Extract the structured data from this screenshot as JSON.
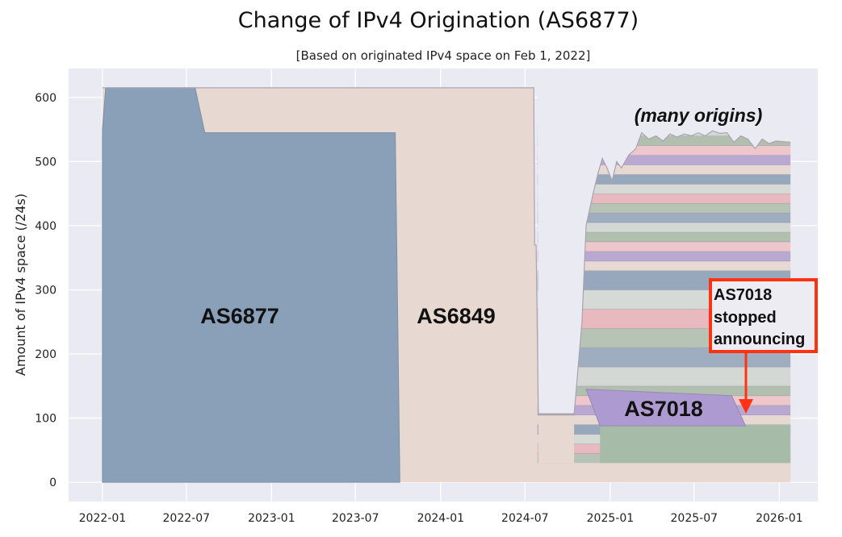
{
  "chart_data": {
    "type": "area",
    "title": "Change of IPv4 Origination (AS6877)",
    "subtitle": "[Based on originated IPv4 space on Feb 1, 2022]",
    "xlabel": "",
    "ylabel": "Amount of IPv4 space (/24s)",
    "x_ticks": [
      "2022-01",
      "2022-07",
      "2023-01",
      "2023-07",
      "2024-01",
      "2024-07",
      "2025-01",
      "2025-07",
      "2026-01"
    ],
    "y_ticks": [
      0,
      100,
      200,
      300,
      400,
      500,
      600
    ],
    "ylim": [
      -30,
      645
    ],
    "xlim": [
      "2021-10-20",
      "2026-03-25"
    ],
    "grid": true,
    "series": [
      {
        "name": "AS6877",
        "color": "#8a9fb7",
        "points": [
          [
            "2022-01-01",
            0
          ],
          [
            "2022-01-01",
            550
          ],
          [
            "2022-01-08",
            615
          ],
          [
            "2022-07-20",
            615
          ],
          [
            "2022-08-10",
            545
          ],
          [
            "2023-09-25",
            545
          ],
          [
            "2023-10-05",
            0
          ]
        ]
      },
      {
        "name": "AS6849",
        "color": "#e5d8d2",
        "points": [
          [
            "2022-01-01",
            615
          ],
          [
            "2024-07-20",
            615
          ],
          [
            "2024-07-22",
            370
          ],
          [
            "2024-07-25",
            370
          ],
          [
            "2024-07-30",
            105
          ],
          [
            "2024-10-15",
            105
          ],
          [
            "2024-10-25",
            110
          ],
          [
            "2024-11-20",
            110
          ],
          [
            "2024-11-30",
            120
          ],
          [
            "2024-12-10",
            30
          ],
          [
            "2026-01-25",
            0
          ]
        ]
      },
      {
        "name": "AS7018",
        "color": "#ab98cb",
        "points": [
          [
            "2024-11-10",
            145
          ],
          [
            "2025-09-20",
            135
          ],
          [
            "2025-10-20",
            88
          ],
          [
            "2024-12-10",
            88
          ]
        ]
      }
    ],
    "annotations": [
      {
        "text": "AS6877",
        "series": "AS6877"
      },
      {
        "text": "AS6849",
        "series": "AS6849"
      },
      {
        "text": "AS7018",
        "series": "AS7018"
      },
      {
        "text": "(many origins)",
        "style": "italic"
      },
      {
        "text": "AS7018 stopped announcing",
        "style": "callout",
        "arrow_to": [
          "2025-10-25",
          105
        ],
        "border_color": "#ff3311"
      }
    ]
  }
}
